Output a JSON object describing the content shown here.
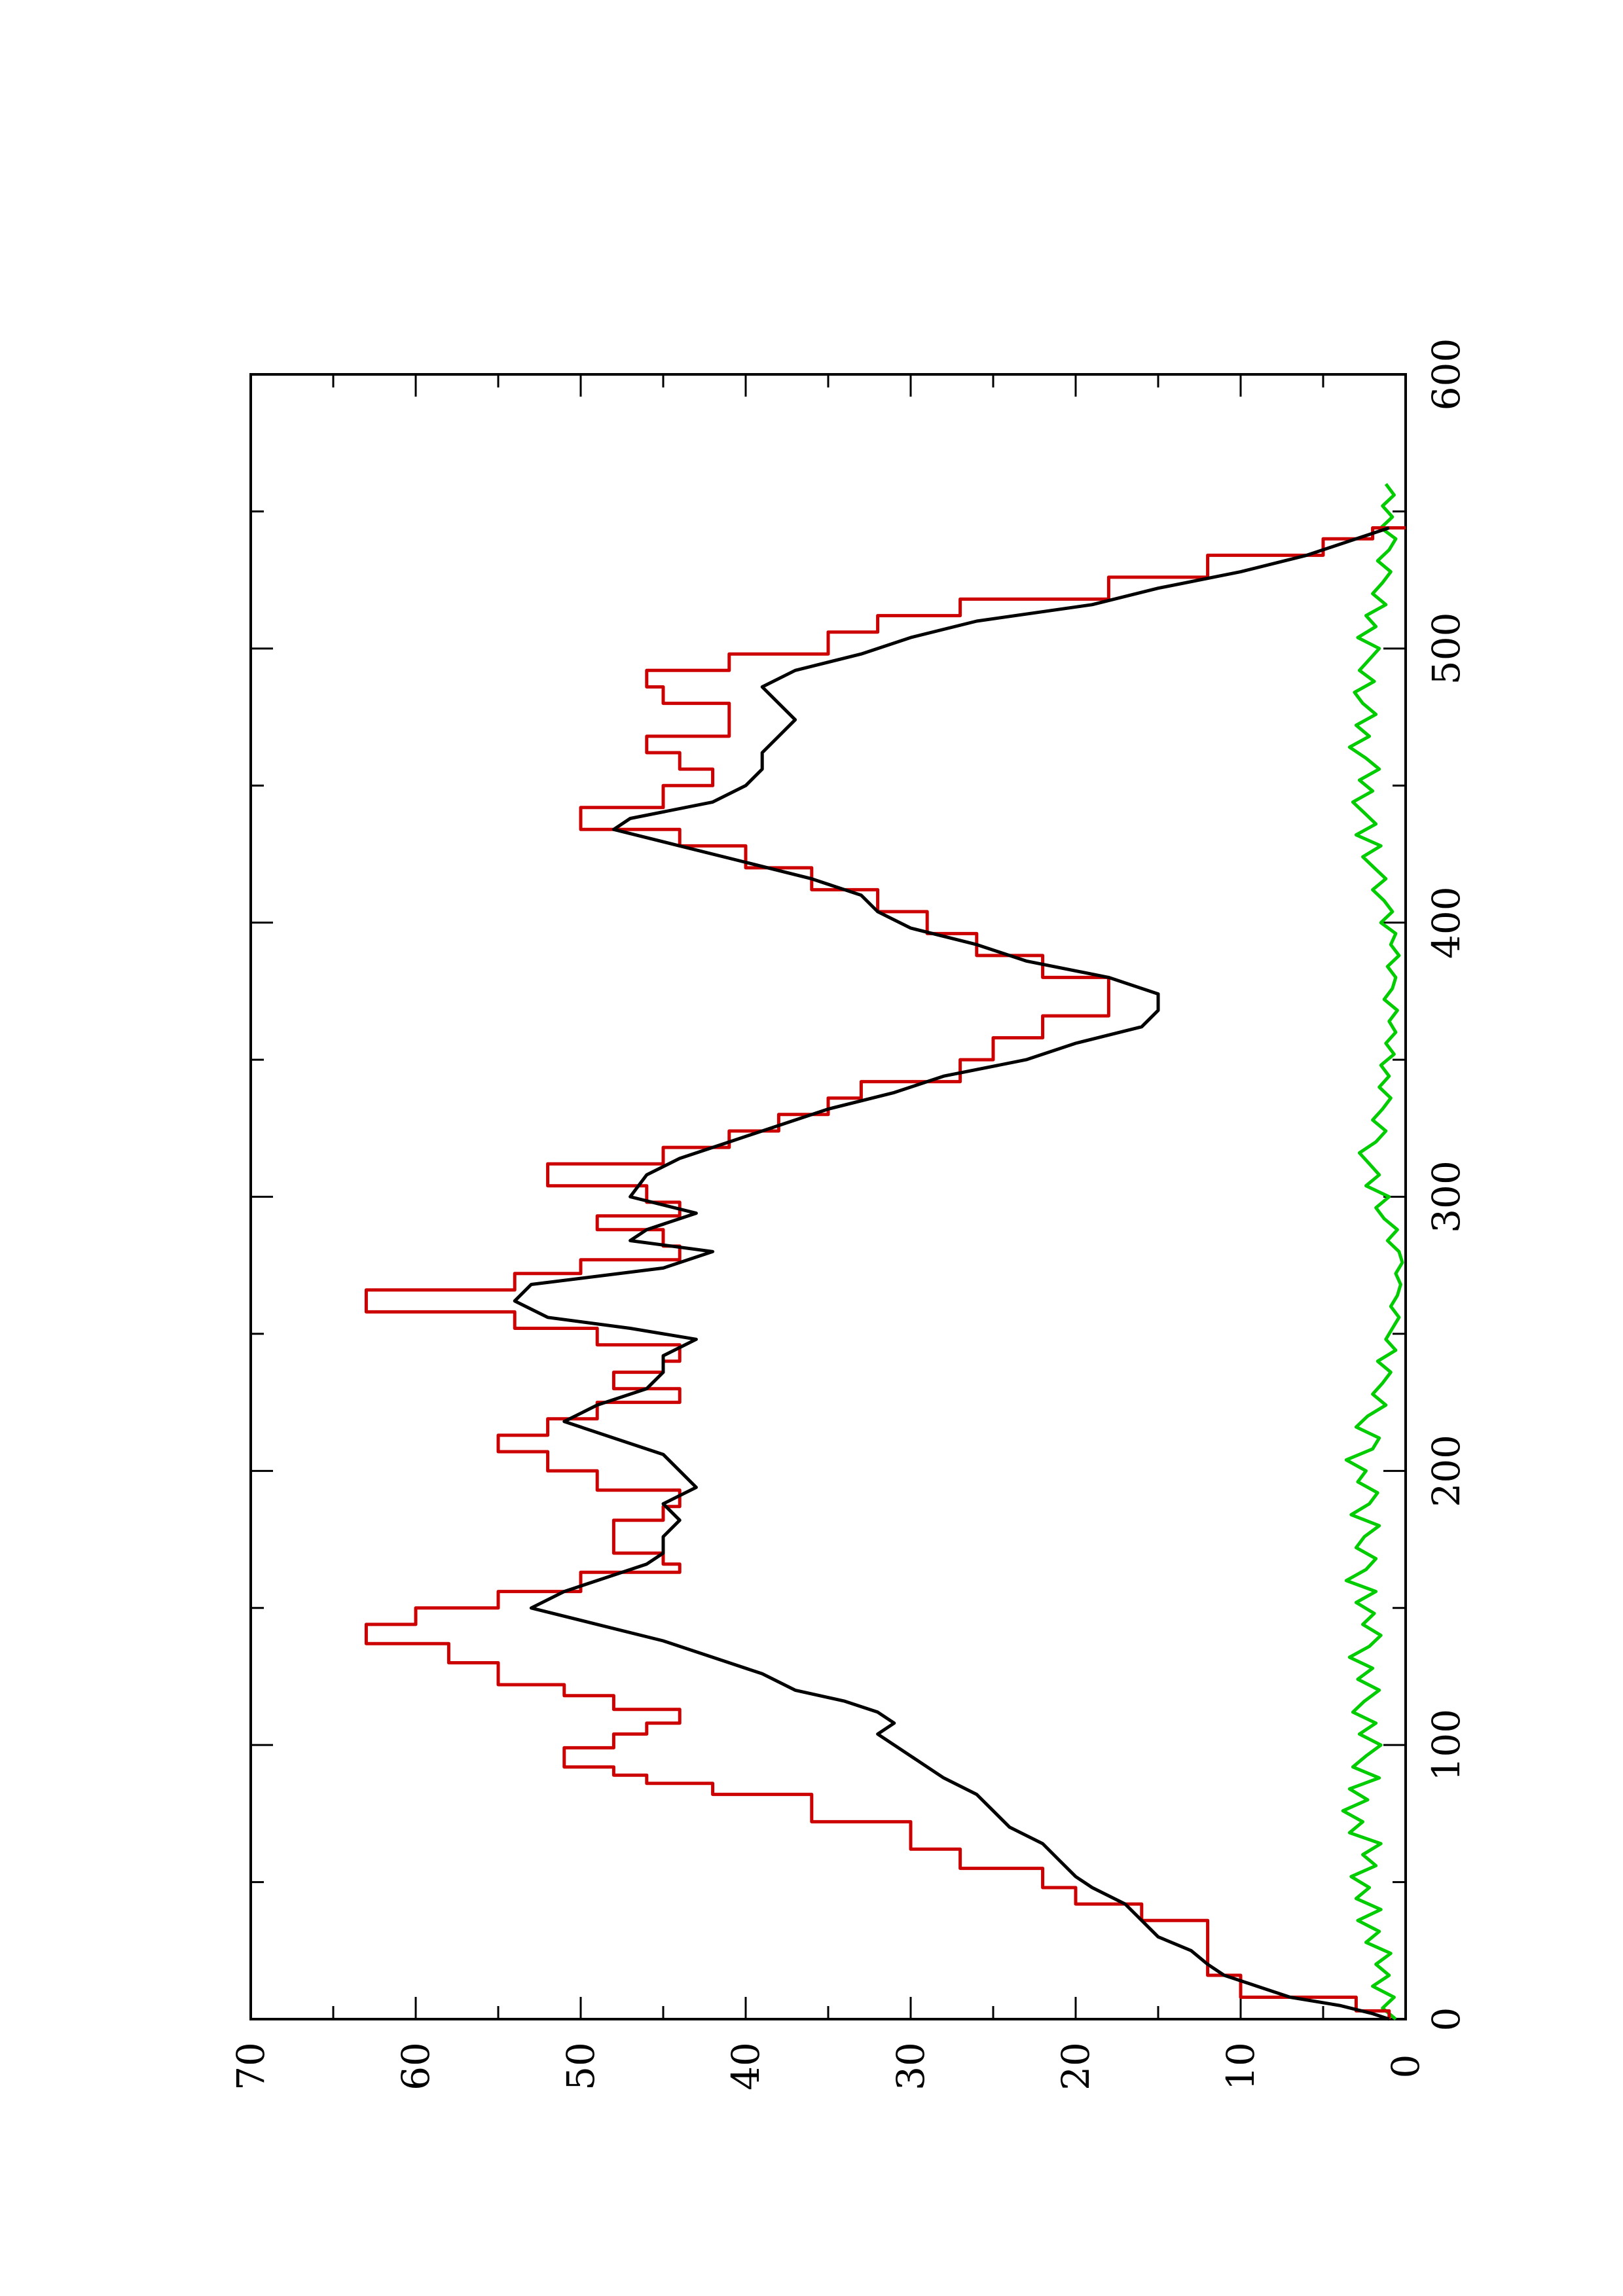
{
  "chart_data": {
    "type": "line",
    "title": "",
    "xlabel": "",
    "ylabel": "",
    "orientation": "rotated-90-counterclockwise",
    "xlim": [
      0,
      600
    ],
    "ylim": [
      0,
      70
    ],
    "x_ticks_major": [
      0,
      100,
      200,
      300,
      400,
      500,
      600
    ],
    "x_tick_labels": [
      "0",
      "100",
      "200",
      "300",
      "400",
      "500",
      "600"
    ],
    "x_ticks_minor": [
      50,
      150,
      250,
      350,
      450,
      550
    ],
    "y_ticks_major": [
      0,
      10,
      20,
      30,
      40,
      50,
      60,
      70
    ],
    "y_tick_labels": [
      "0",
      "10",
      "20",
      "30",
      "40",
      "50",
      "60",
      "70"
    ],
    "y_ticks_minor": [
      5,
      15,
      25,
      35,
      45,
      55,
      65
    ],
    "grid": false,
    "legend": "none",
    "series": [
      {
        "color": "#cc0000",
        "style": "step",
        "x": [
          0,
          3,
          8,
          16,
          30,
          36,
          42,
          48,
          55,
          58,
          62,
          72,
          82,
          86,
          89,
          92,
          96,
          99,
          104,
          108,
          113,
          118,
          122,
          130,
          137,
          144,
          150,
          156,
          163,
          166,
          170,
          176,
          182,
          187,
          193,
          200,
          207,
          213,
          219,
          225,
          230,
          236,
          240,
          246,
          252,
          258,
          266,
          272,
          277,
          282,
          288,
          293,
          298,
          304,
          312,
          318,
          324,
          330,
          336,
          342,
          350,
          358,
          366,
          372,
          380,
          388,
          396,
          404,
          412,
          420,
          428,
          434,
          442,
          450,
          456,
          462,
          468,
          474,
          480,
          486,
          492,
          498,
          506,
          512,
          518,
          526,
          534,
          540,
          544
        ],
        "y": [
          1,
          3,
          10,
          12,
          12,
          16,
          20,
          22,
          27,
          27,
          30,
          36,
          42,
          46,
          48,
          51,
          51,
          48,
          46,
          44,
          48,
          51,
          55,
          58,
          63,
          60,
          55,
          50,
          44,
          45,
          48,
          48,
          45,
          44,
          49,
          52,
          55,
          52,
          49,
          44,
          48,
          45,
          44,
          49,
          54,
          63,
          54,
          50,
          44,
          45,
          49,
          44,
          46,
          52,
          45,
          41,
          38,
          35,
          33,
          27,
          25,
          22,
          18,
          18,
          22,
          26,
          29,
          32,
          36,
          40,
          44,
          50,
          45,
          42,
          44,
          46,
          41,
          41,
          45,
          46,
          41,
          35,
          32,
          27,
          18,
          12,
          5,
          2,
          0
        ]
      },
      {
        "color": "#000000",
        "style": "line",
        "x": [
          0,
          2,
          5,
          8,
          12,
          16,
          20,
          25,
          30,
          36,
          42,
          48,
          52,
          58,
          64,
          70,
          76,
          82,
          88,
          92,
          96,
          100,
          104,
          108,
          112,
          116,
          120,
          126,
          132,
          138,
          144,
          150,
          156,
          162,
          166,
          170,
          176,
          182,
          188,
          194,
          200,
          206,
          212,
          218,
          224,
          230,
          236,
          242,
          248,
          252,
          256,
          262,
          268,
          274,
          280,
          284,
          288,
          294,
          300,
          308,
          314,
          320,
          326,
          332,
          338,
          344,
          350,
          356,
          362,
          368,
          374,
          380,
          386,
          392,
          398,
          404,
          410,
          416,
          422,
          428,
          434,
          438,
          444,
          450,
          456,
          462,
          468,
          474,
          480,
          486,
          492,
          498,
          504,
          510,
          516,
          522,
          528,
          534,
          540,
          544
        ],
        "y": [
          1,
          2,
          4,
          7,
          9,
          11,
          12,
          13,
          15,
          16,
          17,
          19,
          20,
          21,
          22,
          24,
          25,
          26,
          28,
          29,
          30,
          31,
          32,
          31,
          32,
          34,
          37,
          39,
          42,
          45,
          49,
          53,
          51,
          48,
          46,
          45,
          45,
          44,
          45,
          43,
          44,
          45,
          48,
          51,
          49,
          46,
          45,
          45,
          43,
          47,
          52,
          54,
          53,
          45,
          42,
          47,
          46,
          43,
          47,
          46,
          44,
          41,
          38,
          35,
          31,
          28,
          23,
          20,
          16,
          15,
          15,
          18,
          23,
          26,
          30,
          32,
          33,
          36,
          40,
          44,
          48,
          47,
          42,
          40,
          39,
          39,
          38,
          37,
          38,
          39,
          37,
          33,
          30,
          26,
          19,
          15,
          10,
          6,
          3,
          1
        ]
      },
      {
        "color": "#00cc00",
        "style": "line",
        "x": [
          0,
          4,
          8,
          12,
          16,
          20,
          24,
          28,
          32,
          36,
          40,
          44,
          48,
          52,
          56,
          60,
          64,
          68,
          72,
          76,
          80,
          84,
          88,
          92,
          96,
          100,
          104,
          108,
          112,
          116,
          120,
          124,
          128,
          132,
          136,
          140,
          144,
          148,
          152,
          156,
          160,
          164,
          168,
          172,
          176,
          180,
          184,
          188,
          192,
          196,
          200,
          204,
          208,
          212,
          216,
          220,
          224,
          228,
          232,
          236,
          240,
          244,
          248,
          252,
          256,
          260,
          264,
          268,
          272,
          276,
          280,
          284,
          288,
          292,
          296,
          300,
          304,
          308,
          312,
          316,
          320,
          324,
          328,
          332,
          336,
          340,
          344,
          348,
          352,
          356,
          360,
          364,
          368,
          372,
          376,
          380,
          384,
          388,
          392,
          396,
          400,
          404,
          408,
          412,
          416,
          420,
          424,
          428,
          432,
          436,
          440,
          444,
          448,
          452,
          456,
          460,
          464,
          468,
          472,
          476,
          480,
          484,
          488,
          492,
          496,
          500,
          504,
          508,
          512,
          516,
          520,
          524,
          528,
          532,
          536,
          540,
          544,
          548,
          552,
          556,
          560
        ],
        "y": [
          0.6,
          1.4,
          0.7,
          2.0,
          1.0,
          1.8,
          0.9,
          2.4,
          1.6,
          2.9,
          1.5,
          3.0,
          2.2,
          3.3,
          1.8,
          2.6,
          1.5,
          3.4,
          2.6,
          3.8,
          2.3,
          3.4,
          1.6,
          3.2,
          2.4,
          1.5,
          2.8,
          1.8,
          3.2,
          2.5,
          1.6,
          2.9,
          2.0,
          3.4,
          2.2,
          1.5,
          2.6,
          1.9,
          3.0,
          1.8,
          3.6,
          2.4,
          1.8,
          3.0,
          2.5,
          1.6,
          3.3,
          2.2,
          1.7,
          2.9,
          2.4,
          3.6,
          2.0,
          1.6,
          3.0,
          2.3,
          1.2,
          2.0,
          1.4,
          0.9,
          1.7,
          0.6,
          1.2,
          0.8,
          0.4,
          0.9,
          0.5,
          0.3,
          0.6,
          0.2,
          0.4,
          1.1,
          0.5,
          1.3,
          1.8,
          1.0,
          2.4,
          1.6,
          2.2,
          2.8,
          1.8,
          1.2,
          2.0,
          1.4,
          0.9,
          1.6,
          1.0,
          1.5,
          0.7,
          1.2,
          0.6,
          1.0,
          0.5,
          1.3,
          0.8,
          0.6,
          1.1,
          0.4,
          0.9,
          0.6,
          1.5,
          0.8,
          1.3,
          2.0,
          1.2,
          1.9,
          2.6,
          1.5,
          3.0,
          1.8,
          2.5,
          3.2,
          2.0,
          2.8,
          1.6,
          2.4,
          3.4,
          2.2,
          3.0,
          1.8,
          2.6,
          3.1,
          1.9,
          2.8,
          2.2,
          1.6,
          2.9,
          1.8,
          2.4,
          1.2,
          2.0,
          1.4,
          0.9,
          1.7,
          1.0,
          0.6,
          1.5,
          0.8,
          1.4,
          0.7,
          1.2
        ]
      }
    ]
  }
}
